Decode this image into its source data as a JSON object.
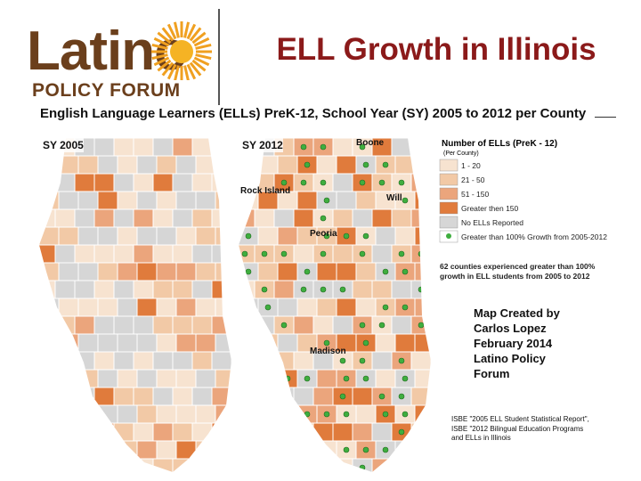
{
  "header": {
    "logo_word": "Latino",
    "logo_sub": "POLICY FORUM",
    "title": "ELL Growth in Illinois",
    "subtitle": "English Language Learners (ELLs) PreK-12, School Year (SY) 2005 to 2012 per County"
  },
  "maps": [
    {
      "label": "SY 2005"
    },
    {
      "label": "SY 2012",
      "highlights": [
        "Boone",
        "Rock Island",
        "Will",
        "Peoria",
        "Madison"
      ]
    }
  ],
  "legend": {
    "title": "Number of ELLs (PreK - 12)",
    "subtitle": "(Per County)",
    "items": [
      "1 - 20",
      "21 - 50",
      "51 - 150",
      "Greater then 150",
      "No ELLs Reported",
      "Greater than 100% Growth from 2005-2012"
    ],
    "note": "62 counties experienced greater than 100% growth in ELL students from 2005 to 2012"
  },
  "credit": [
    "Map Created by",
    "Carlos Lopez",
    "February 2014",
    "Latino Policy",
    "Forum"
  ],
  "source": "ISBE \"2005 ELL Student Statistical Report\", ISBE \"2012 Bilingual Education Programs and ELLs in Illinois"
}
